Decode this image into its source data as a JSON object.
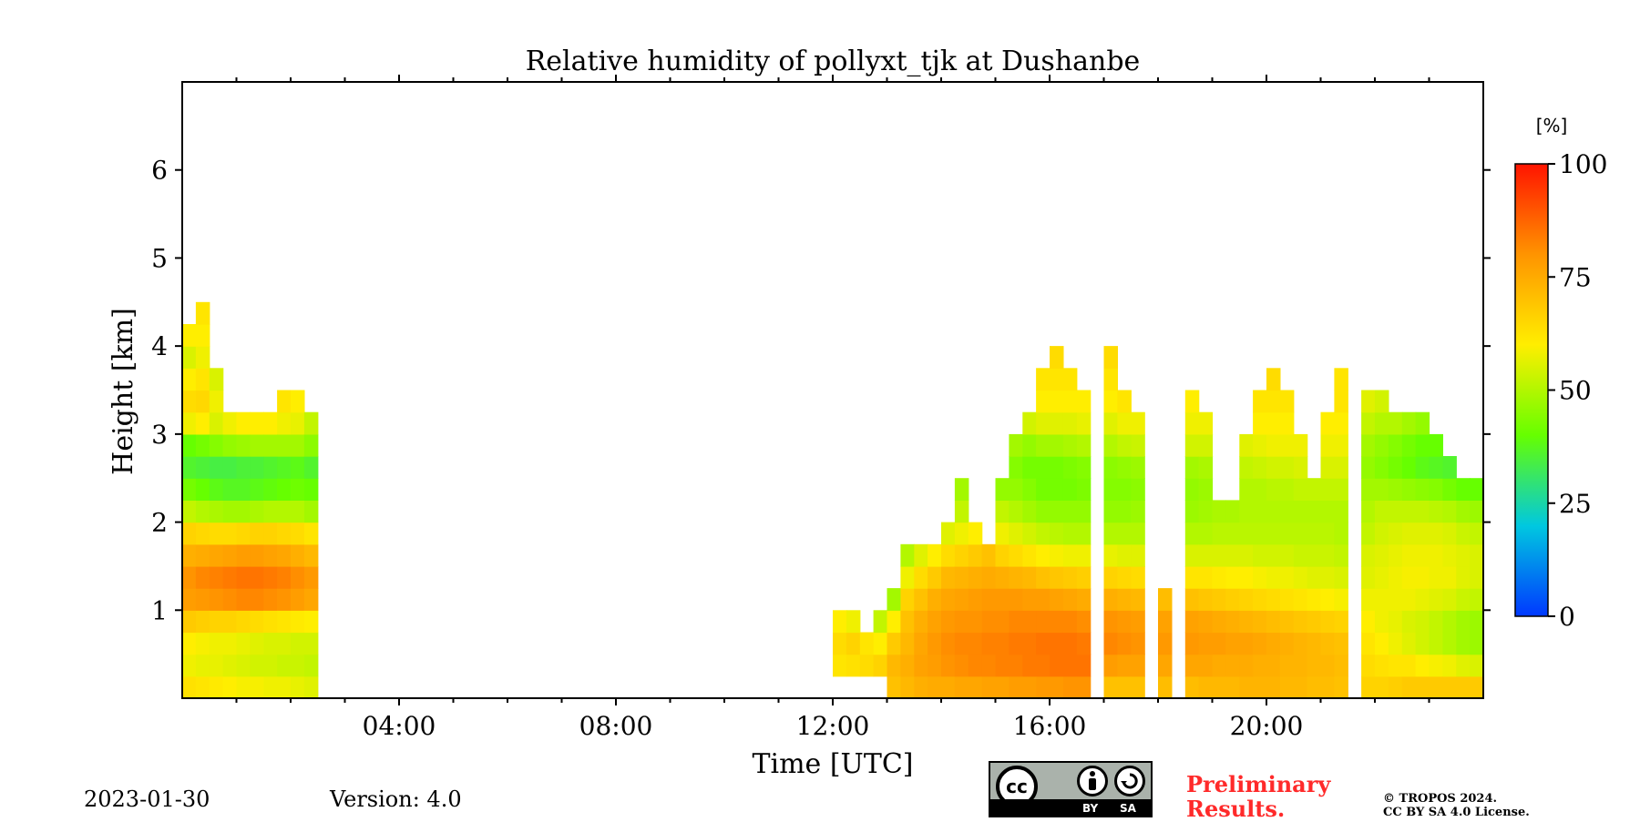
{
  "chart_data": {
    "type": "heatmap",
    "title": "Relative humidity of pollyxt_tjk at Dushanbe",
    "xlabel": "Time [UTC]",
    "ylabel": "Height [km]",
    "xlim_hours": [
      0,
      24
    ],
    "ylim_km": [
      0,
      7
    ],
    "x_ticks": [
      {
        "value": 4,
        "label": "04:00"
      },
      {
        "value": 8,
        "label": "08:00"
      },
      {
        "value": 12,
        "label": "12:00"
      },
      {
        "value": 16,
        "label": "16:00"
      },
      {
        "value": 20,
        "label": "20:00"
      }
    ],
    "y_ticks": [
      {
        "value": 1,
        "label": "1"
      },
      {
        "value": 2,
        "label": "2"
      },
      {
        "value": 3,
        "label": "3"
      },
      {
        "value": 4,
        "label": "4"
      },
      {
        "value": 5,
        "label": "5"
      },
      {
        "value": 6,
        "label": "6"
      }
    ],
    "colorbar": {
      "unit": "[%]",
      "min": 0,
      "max": 100,
      "ticks": [
        {
          "value": 0,
          "label": "0"
        },
        {
          "value": 25,
          "label": "25"
        },
        {
          "value": 50,
          "label": "50"
        },
        {
          "value": 75,
          "label": "75"
        },
        {
          "value": 100,
          "label": "100"
        }
      ],
      "colors": [
        "#0038ff",
        "#00c8e0",
        "#66ff00",
        "#ffee00",
        "#ff9400",
        "#ff1400"
      ]
    },
    "gridded_data": {
      "time_step_hours": 0.25,
      "height_step_km": 0.25,
      "description": "Approximate relative humidity (%) per time column; each column lists the lowest measured height bin (km), the top of the signal (km), and RH values from the lowest bin upward (0.25 km step, heights below the start are empty).",
      "columns": [
        {
          "t": 0.0,
          "start": 0.0,
          "top": 4.25,
          "rh": [
            63,
            58,
            60,
            68,
            78,
            80,
            74,
            66,
            52,
            42,
            36,
            40,
            58,
            64,
            60,
            55,
            60
          ]
        },
        {
          "t": 0.25,
          "start": 0.0,
          "top": 4.5,
          "rh": [
            62,
            57,
            59,
            67,
            79,
            82,
            75,
            65,
            50,
            40,
            35,
            42,
            60,
            65,
            62,
            58,
            60,
            62
          ]
        },
        {
          "t": 0.5,
          "start": 0.0,
          "top": 3.75,
          "rh": [
            61,
            57,
            58,
            66,
            80,
            83,
            76,
            64,
            49,
            38,
            34,
            44,
            55,
            58,
            55
          ]
        },
        {
          "t": 0.75,
          "start": 0.0,
          "top": 3.25,
          "rh": [
            60,
            56,
            58,
            66,
            81,
            84,
            77,
            64,
            48,
            37,
            34,
            46,
            58
          ]
        },
        {
          "t": 1.0,
          "start": 0.0,
          "top": 3.25,
          "rh": [
            59,
            55,
            57,
            65,
            82,
            85,
            78,
            65,
            48,
            37,
            35,
            47,
            60
          ]
        },
        {
          "t": 1.25,
          "start": 0.0,
          "top": 3.25,
          "rh": [
            59,
            54,
            56,
            64,
            82,
            85,
            78,
            66,
            49,
            38,
            35,
            48,
            60
          ]
        },
        {
          "t": 1.5,
          "start": 0.0,
          "top": 3.25,
          "rh": [
            58,
            54,
            55,
            63,
            81,
            84,
            77,
            66,
            50,
            39,
            36,
            48,
            60
          ]
        },
        {
          "t": 1.75,
          "start": 0.0,
          "top": 3.5,
          "rh": [
            58,
            53,
            55,
            62,
            80,
            83,
            76,
            65,
            50,
            40,
            37,
            48,
            58,
            62
          ]
        },
        {
          "t": 2.0,
          "start": 0.0,
          "top": 3.5,
          "rh": [
            57,
            53,
            54,
            61,
            78,
            81,
            74,
            64,
            50,
            41,
            38,
            48,
            57,
            60
          ]
        },
        {
          "t": 2.25,
          "start": 0.0,
          "top": 3.25,
          "rh": [
            56,
            52,
            54,
            60,
            76,
            79,
            72,
            62,
            48,
            40,
            36,
            45,
            52
          ]
        },
        {
          "t": 12.0,
          "start": 0.25,
          "top": 1.0,
          "rh": [
            62,
            64,
            60
          ]
        },
        {
          "t": 12.25,
          "start": 0.25,
          "top": 1.0,
          "rh": [
            63,
            66,
            58
          ]
        },
        {
          "t": 12.5,
          "start": 0.25,
          "top": 0.75,
          "rh": [
            64,
            62
          ]
        },
        {
          "t": 12.75,
          "start": 0.25,
          "top": 1.0,
          "rh": [
            66,
            60,
            52
          ]
        },
        {
          "t": 13.0,
          "start": 0.0,
          "top": 1.25,
          "rh": [
            70,
            72,
            68,
            60,
            48
          ]
        },
        {
          "t": 13.25,
          "start": 0.0,
          "top": 1.75,
          "rh": [
            72,
            74,
            72,
            70,
            66,
            58,
            50
          ]
        },
        {
          "t": 13.5,
          "start": 0.0,
          "top": 1.75,
          "rh": [
            74,
            77,
            76,
            74,
            70,
            64,
            56
          ]
        },
        {
          "t": 13.75,
          "start": 0.0,
          "top": 1.75,
          "rh": [
            75,
            78,
            79,
            77,
            74,
            68,
            60
          ]
        },
        {
          "t": 14.0,
          "start": 0.0,
          "top": 2.0,
          "rh": [
            75,
            80,
            81,
            79,
            76,
            72,
            64,
            56
          ]
        },
        {
          "t": 14.25,
          "start": 0.0,
          "top": 2.5,
          "rh": [
            76,
            81,
            82,
            80,
            77,
            73,
            66,
            58,
            52,
            48
          ]
        },
        {
          "t": 14.5,
          "start": 0.0,
          "top": 2.0,
          "rh": [
            76,
            82,
            82,
            80,
            78,
            74,
            68,
            60
          ]
        },
        {
          "t": 14.75,
          "start": 0.0,
          "top": 1.75,
          "rh": [
            77,
            82,
            83,
            81,
            79,
            75,
            70
          ]
        },
        {
          "t": 15.0,
          "start": 0.0,
          "top": 2.5,
          "rh": [
            77,
            83,
            83,
            81,
            79,
            74,
            66,
            58,
            52,
            46
          ]
        },
        {
          "t": 15.25,
          "start": 0.0,
          "top": 3.0,
          "rh": [
            78,
            83,
            84,
            82,
            79,
            73,
            64,
            56,
            50,
            46,
            44,
            48
          ]
        },
        {
          "t": 15.5,
          "start": 0.0,
          "top": 3.25,
          "rh": [
            78,
            84,
            84,
            82,
            78,
            72,
            62,
            54,
            48,
            44,
            42,
            46,
            54
          ]
        },
        {
          "t": 15.75,
          "start": 0.0,
          "top": 3.75,
          "rh": [
            79,
            84,
            85,
            82,
            78,
            70,
            60,
            52,
            46,
            42,
            42,
            48,
            56,
            60,
            62
          ]
        },
        {
          "t": 16.0,
          "start": 0.0,
          "top": 4.0,
          "rh": [
            79,
            85,
            85,
            82,
            77,
            69,
            59,
            51,
            46,
            42,
            42,
            48,
            56,
            60,
            62,
            64
          ]
        },
        {
          "t": 16.25,
          "start": 0.0,
          "top": 3.75,
          "rh": [
            80,
            85,
            85,
            82,
            76,
            68,
            58,
            50,
            46,
            42,
            43,
            49,
            56,
            60,
            62
          ]
        },
        {
          "t": 16.5,
          "start": 0.0,
          "top": 3.5,
          "rh": [
            80,
            85,
            84,
            81,
            75,
            67,
            58,
            50,
            46,
            43,
            44,
            50,
            57,
            60
          ]
        },
        {
          "t": 17.0,
          "start": 0.0,
          "top": 4.0,
          "rh": [
            70,
            78,
            82,
            80,
            74,
            66,
            57,
            50,
            46,
            44,
            45,
            50,
            56,
            60,
            62,
            64
          ]
        },
        {
          "t": 17.25,
          "start": 0.0,
          "top": 3.5,
          "rh": [
            70,
            77,
            81,
            79,
            73,
            65,
            56,
            50,
            46,
            44,
            46,
            52,
            58,
            62
          ]
        },
        {
          "t": 17.5,
          "start": 0.0,
          "top": 3.25,
          "rh": [
            70,
            77,
            80,
            78,
            72,
            64,
            56,
            50,
            47,
            45,
            47,
            53,
            58
          ]
        },
        {
          "t": 18.0,
          "start": 0.0,
          "top": 1.25,
          "rh": [
            71,
            76,
            79,
            77,
            71
          ]
        },
        {
          "t": 18.5,
          "start": 0.0,
          "top": 3.5,
          "rh": [
            71,
            76,
            79,
            77,
            70,
            62,
            55,
            50,
            47,
            46,
            48,
            54,
            58,
            60
          ]
        },
        {
          "t": 18.75,
          "start": 0.0,
          "top": 3.25,
          "rh": [
            72,
            76,
            78,
            76,
            69,
            62,
            55,
            50,
            48,
            47,
            49,
            54,
            58
          ]
        },
        {
          "t": 19.0,
          "start": 0.0,
          "top": 2.25,
          "rh": [
            72,
            75,
            78,
            75,
            68,
            61,
            55,
            51,
            49
          ]
        },
        {
          "t": 19.25,
          "start": 0.0,
          "top": 2.25,
          "rh": [
            72,
            75,
            77,
            74,
            67,
            60,
            55,
            51,
            49
          ]
        },
        {
          "t": 19.5,
          "start": 0.0,
          "top": 3.0,
          "rh": [
            73,
            75,
            77,
            73,
            66,
            60,
            55,
            51,
            50,
            50,
            52,
            56
          ]
        },
        {
          "t": 19.75,
          "start": 0.0,
          "top": 3.5,
          "rh": [
            73,
            74,
            76,
            72,
            65,
            59,
            54,
            51,
            50,
            50,
            53,
            57,
            60,
            62
          ]
        },
        {
          "t": 20.0,
          "start": 0.0,
          "top": 3.75,
          "rh": [
            73,
            74,
            75,
            71,
            64,
            58,
            54,
            51,
            50,
            51,
            54,
            58,
            60,
            62,
            64
          ]
        },
        {
          "t": 20.25,
          "start": 0.0,
          "top": 3.5,
          "rh": [
            72,
            73,
            74,
            70,
            63,
            58,
            54,
            51,
            50,
            51,
            54,
            58,
            60,
            62
          ]
        },
        {
          "t": 20.5,
          "start": 0.0,
          "top": 3.0,
          "rh": [
            72,
            73,
            73,
            69,
            62,
            57,
            53,
            51,
            50,
            52,
            55,
            58
          ]
        },
        {
          "t": 20.75,
          "start": 0.0,
          "top": 2.5,
          "rh": [
            71,
            72,
            72,
            68,
            61,
            56,
            53,
            51,
            50,
            52
          ]
        },
        {
          "t": 21.0,
          "start": 0.0,
          "top": 3.25,
          "rh": [
            71,
            72,
            71,
            67,
            60,
            56,
            53,
            51,
            50,
            52,
            55,
            58,
            60
          ]
        },
        {
          "t": 21.25,
          "start": 0.0,
          "top": 3.75,
          "rh": [
            70,
            71,
            70,
            66,
            59,
            55,
            52,
            50,
            50,
            52,
            55,
            58,
            60,
            62,
            62
          ]
        },
        {
          "t": 21.75,
          "start": 0.0,
          "top": 3.5,
          "rh": [
            66,
            64,
            62,
            60,
            58,
            56,
            55,
            52,
            50,
            48,
            46,
            48,
            52,
            56
          ]
        },
        {
          "t": 22.0,
          "start": 0.0,
          "top": 3.5,
          "rh": [
            66,
            63,
            60,
            58,
            58,
            57,
            56,
            54,
            52,
            48,
            44,
            46,
            50,
            54
          ]
        },
        {
          "t": 22.25,
          "start": 0.0,
          "top": 3.25,
          "rh": [
            67,
            62,
            58,
            57,
            58,
            58,
            57,
            55,
            52,
            47,
            42,
            44,
            50
          ]
        },
        {
          "t": 22.5,
          "start": 0.0,
          "top": 3.25,
          "rh": [
            68,
            62,
            56,
            55,
            58,
            59,
            58,
            56,
            52,
            46,
            40,
            42,
            48
          ]
        },
        {
          "t": 22.75,
          "start": 0.0,
          "top": 3.25,
          "rh": [
            68,
            60,
            54,
            54,
            57,
            59,
            58,
            56,
            52,
            45,
            38,
            40,
            46
          ]
        },
        {
          "t": 23.0,
          "start": 0.0,
          "top": 3.0,
          "rh": [
            68,
            59,
            52,
            52,
            56,
            58,
            58,
            56,
            51,
            44,
            37,
            40
          ]
        },
        {
          "t": 23.25,
          "start": 0.0,
          "top": 2.75,
          "rh": [
            68,
            58,
            50,
            50,
            55,
            58,
            57,
            55,
            50,
            42,
            36
          ]
        },
        {
          "t": 23.5,
          "start": 0.0,
          "top": 2.5,
          "rh": [
            68,
            56,
            48,
            48,
            53,
            56,
            56,
            53,
            48,
            40
          ]
        },
        {
          "t": 23.75,
          "start": 0.0,
          "top": 2.5,
          "rh": [
            68,
            55,
            47,
            47,
            52,
            55,
            55,
            52,
            47,
            40
          ]
        }
      ]
    }
  },
  "footer": {
    "date": "2023-01-30",
    "version": "Version: 4.0",
    "preliminary_line1": "Preliminary",
    "preliminary_line2": "Results.",
    "copyright_line1": "© TROPOS 2024.",
    "copyright_line2": "CC BY SA 4.0 License.",
    "cc_by": "BY",
    "cc_sa": "SA",
    "cc_text": "cc"
  },
  "colors": {
    "preliminary": "#ff2a2a",
    "cc_badge": "#aab2ab"
  }
}
